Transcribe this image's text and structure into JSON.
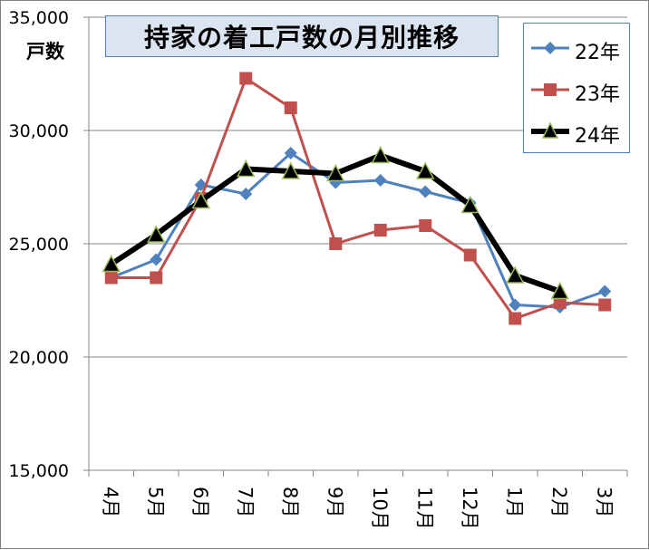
{
  "chart_data": {
    "type": "line",
    "title": "持家の着工戸数の月別推移",
    "ylabel": "戸数",
    "xlabel": "",
    "categories": [
      "4月",
      "5月",
      "6月",
      "7月",
      "8月",
      "9月",
      "10月",
      "11月",
      "12月",
      "1月",
      "2月",
      "3月"
    ],
    "ylim": [
      15000,
      35000
    ],
    "yticks": [
      15000,
      20000,
      25000,
      30000,
      35000
    ],
    "ytick_labels": [
      "15,000",
      "20,000",
      "25,000",
      "30,000",
      "35,000"
    ],
    "grid": true,
    "legend_position": "top-right",
    "series": [
      {
        "name": "22年",
        "color": "#4f81bd",
        "marker": "diamond",
        "values": [
          23500,
          24300,
          27600,
          27200,
          29000,
          27700,
          27800,
          27300,
          26800,
          22300,
          22200,
          22900
        ]
      },
      {
        "name": "23年",
        "color": "#c0504d",
        "marker": "square",
        "values": [
          23500,
          23500,
          27000,
          32300,
          31000,
          25000,
          25600,
          25800,
          24500,
          21700,
          22400,
          22300
        ]
      },
      {
        "name": "24年",
        "color": "#000000",
        "marker": "triangle",
        "marker_fill": "#000000",
        "marker_edge": "#9bbb59",
        "values": [
          24100,
          25400,
          26900,
          28300,
          28200,
          28100,
          28900,
          28200,
          26700,
          23600,
          22900,
          null
        ]
      }
    ]
  }
}
